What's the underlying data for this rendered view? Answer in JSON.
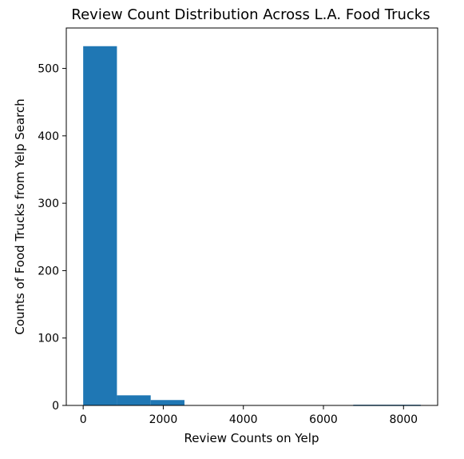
{
  "chart_data": {
    "type": "histogram",
    "title": "Review Count Distribution Across L.A. Food Trucks",
    "xlabel": "Review Counts on Yelp",
    "ylabel": "Counts of Food Trucks from Yelp Search",
    "bin_edges": [
      0,
      843,
      1686,
      2529,
      3372,
      4215,
      5058,
      5901,
      6744,
      7587,
      8430
    ],
    "counts": [
      533,
      15,
      8,
      0,
      0,
      0,
      0,
      0,
      1,
      1
    ],
    "xlim": [
      -422,
      8852
    ],
    "ylim": [
      0,
      560
    ],
    "xticks": [
      0,
      2000,
      4000,
      6000,
      8000
    ],
    "yticks": [
      0,
      100,
      200,
      300,
      400,
      500
    ],
    "bar_color": "#1f77b4",
    "grid": false,
    "legend": false
  }
}
